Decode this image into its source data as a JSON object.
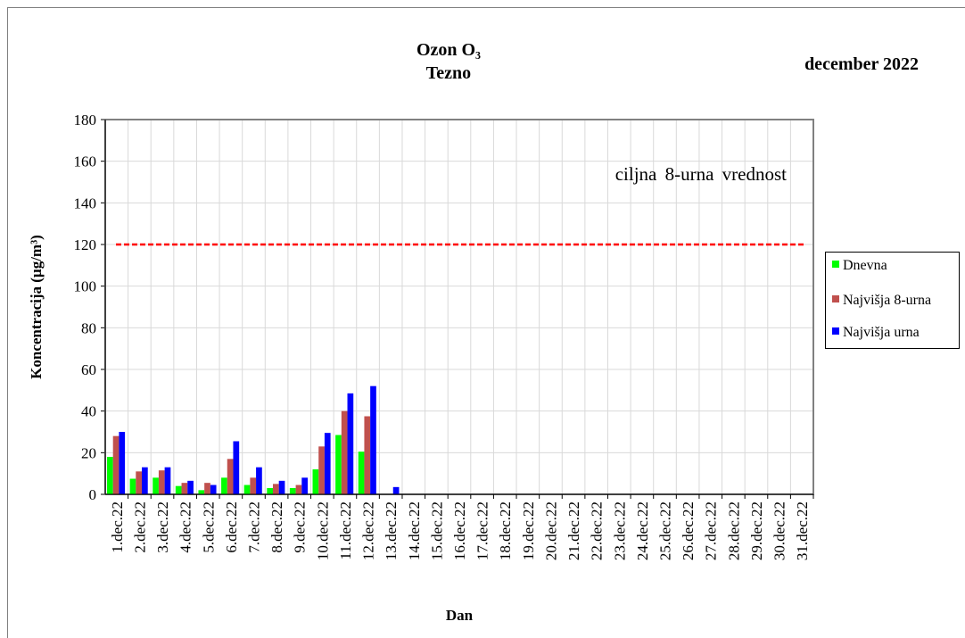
{
  "chart_data": {
    "type": "bar",
    "title": "Ozon O₃",
    "subtitle": "Tezno",
    "period": "december 2022",
    "xlabel": "Dan",
    "ylabel": "Koncentracija  (µg/m³)",
    "categories": [
      "1.dec.22",
      "2.dec.22",
      "3.dec.22",
      "4.dec.22",
      "5.dec.22",
      "6.dec.22",
      "7.dec.22",
      "8.dec.22",
      "9.dec.22",
      "10.dec.22",
      "11.dec.22",
      "12.dec.22",
      "13.dec.22",
      "14.dec.22",
      "15.dec.22",
      "16.dec.22",
      "17.dec.22",
      "18.dec.22",
      "19.dec.22",
      "20.dec.22",
      "21.dec.22",
      "22.dec.22",
      "23.dec.22",
      "24.dec.22",
      "25.dec.22",
      "26.dec.22",
      "27.dec.22",
      "28.dec.22",
      "29.dec.22",
      "30.dec.22",
      "31.dec.22"
    ],
    "series": [
      {
        "name": "Dnevna",
        "color": "#00ff00",
        "values": [
          18,
          7.5,
          8,
          4,
          2,
          8,
          4.5,
          3,
          3,
          12,
          28.5,
          20.5,
          null,
          null,
          null,
          null,
          null,
          null,
          null,
          null,
          null,
          null,
          null,
          null,
          null,
          null,
          null,
          null,
          null,
          null,
          null
        ]
      },
      {
        "name": "Najvišja 8-urna",
        "color": "#c0504d",
        "values": [
          28,
          11,
          11.5,
          5.5,
          5.5,
          17,
          8,
          5,
          4.5,
          23,
          40,
          37.5,
          null,
          null,
          null,
          null,
          null,
          null,
          null,
          null,
          null,
          null,
          null,
          null,
          null,
          null,
          null,
          null,
          null,
          null,
          null
        ]
      },
      {
        "name": "Najvišja urna",
        "color": "#0000ff",
        "values": [
          30,
          13,
          13,
          6.5,
          4.5,
          25.5,
          13,
          6.5,
          8,
          29.5,
          48.5,
          52,
          3.5,
          null,
          null,
          null,
          null,
          null,
          null,
          null,
          null,
          null,
          null,
          null,
          null,
          null,
          null,
          null,
          null,
          null,
          null
        ]
      }
    ],
    "reference_line": {
      "value": 120,
      "label": "ciljna 8-urna vrednost",
      "color": "#ff0000"
    },
    "ylim": [
      0,
      180
    ],
    "yticks": [
      0,
      20,
      40,
      60,
      80,
      100,
      120,
      140,
      160,
      180
    ],
    "grid": true,
    "legend": "right"
  }
}
